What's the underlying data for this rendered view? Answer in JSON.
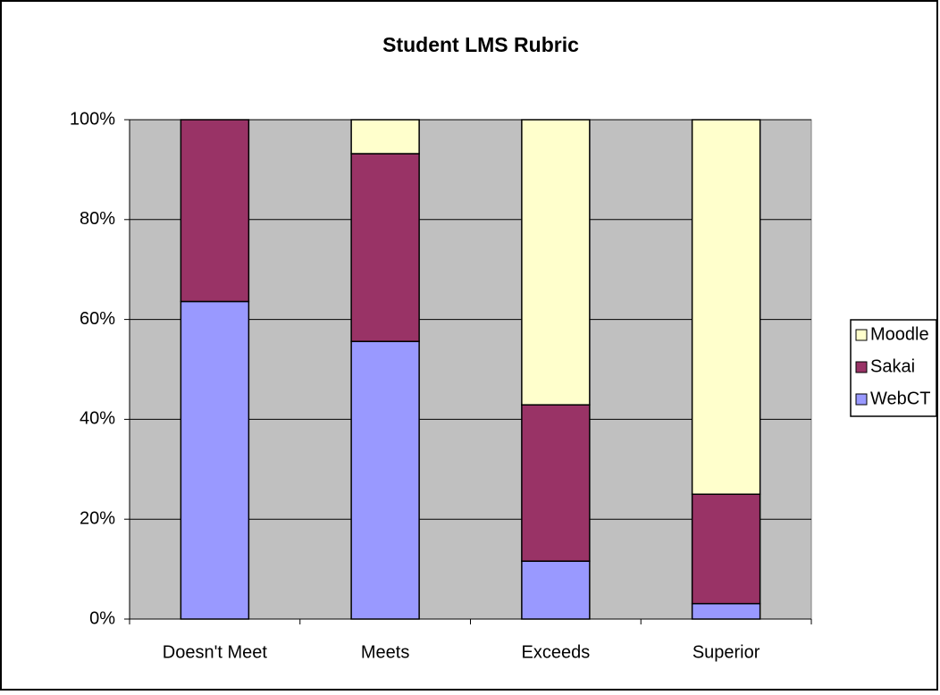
{
  "chart_data": {
    "type": "stacked_bar",
    "title": "Student LMS Rubric",
    "categories": [
      "Doesn't Meet",
      "Meets",
      "Exceeds",
      "Superior"
    ],
    "series": [
      {
        "name": "WebCT",
        "color": "#9999ff",
        "values": [
          63.6,
          55.6,
          11.6,
          3.1
        ]
      },
      {
        "name": "Sakai",
        "color": "#993366",
        "values": [
          36.4,
          37.6,
          31.3,
          21.9
        ]
      },
      {
        "name": "Moodle",
        "color": "#ffffcc",
        "values": [
          0,
          6.8,
          57.1,
          75
        ]
      }
    ],
    "ylim": [
      0,
      100
    ],
    "yticks": [
      {
        "value": 0,
        "label": "0%"
      },
      {
        "value": 20,
        "label": "20%"
      },
      {
        "value": 40,
        "label": "40%"
      },
      {
        "value": 60,
        "label": "60%"
      },
      {
        "value": 80,
        "label": "80%"
      },
      {
        "value": 100,
        "label": "100%"
      }
    ],
    "grid": true,
    "plot_background": "#c0c0c0",
    "legend": "right"
  }
}
